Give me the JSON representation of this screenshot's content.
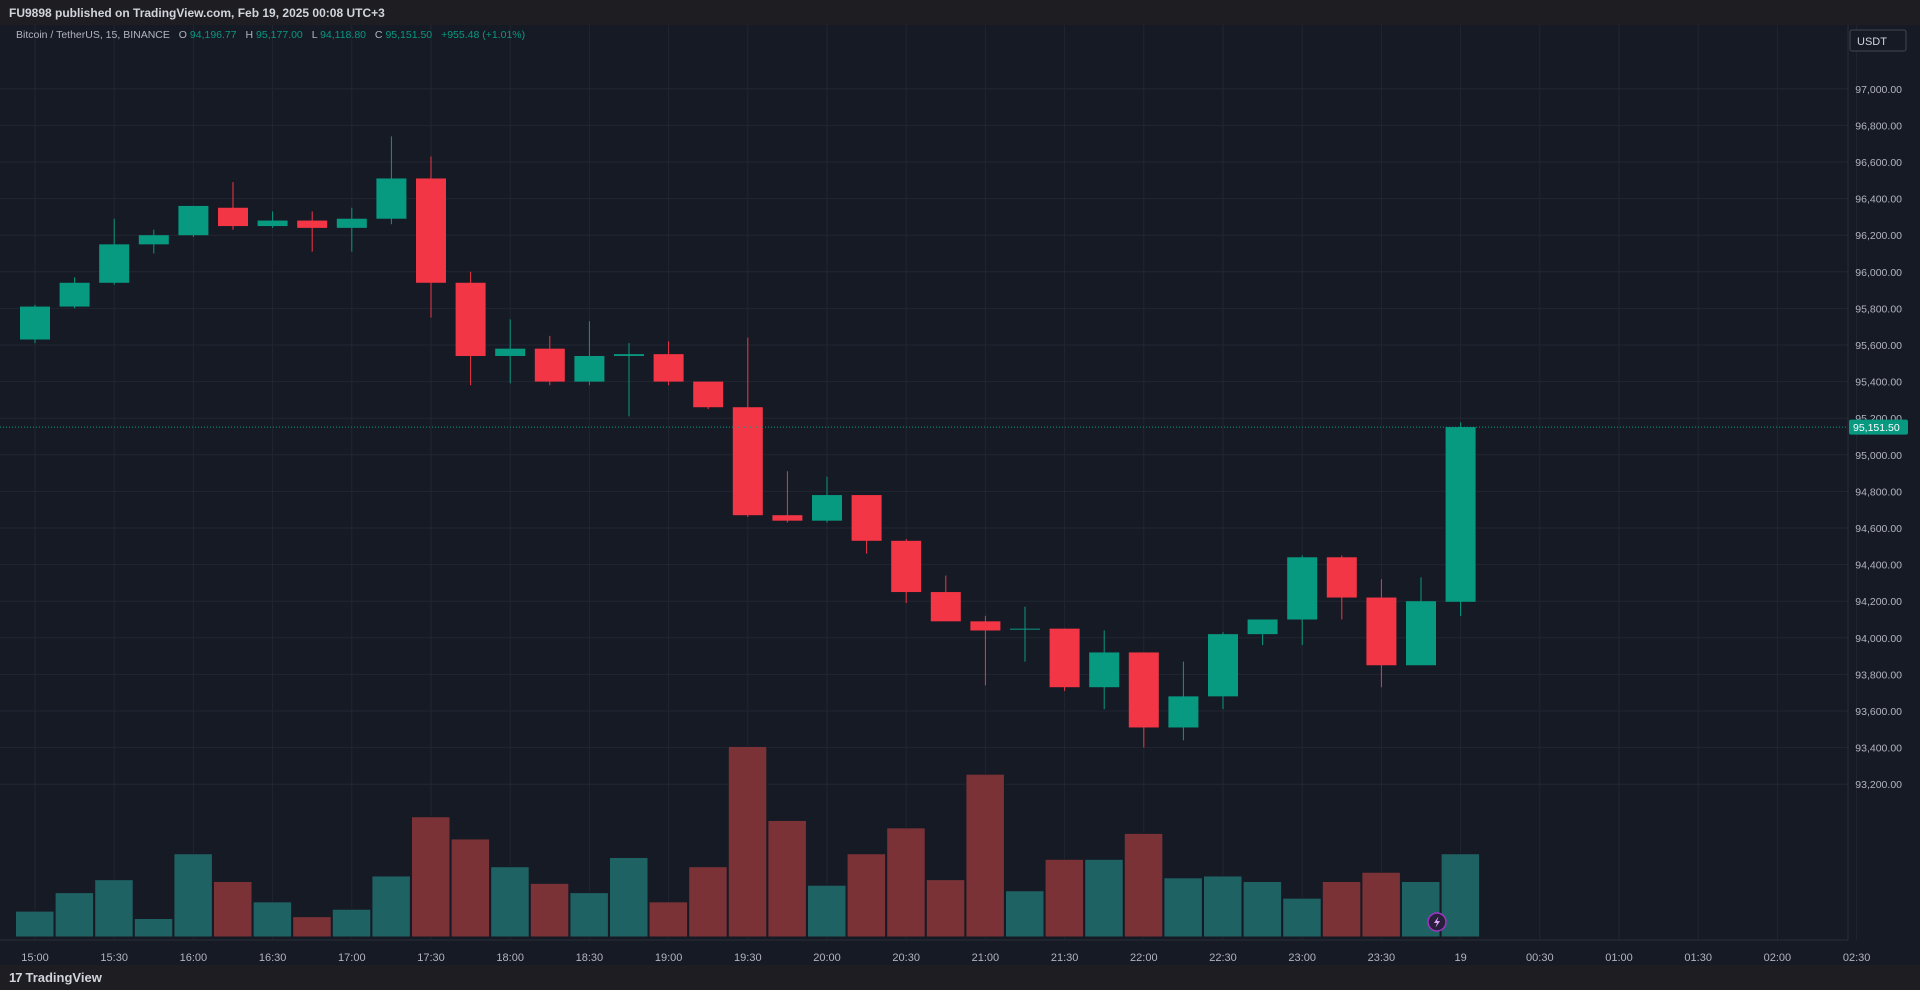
{
  "header": {
    "published": "FU9898 published on TradingView.com, Feb 19, 2025 00:08 UTC+3"
  },
  "footer": {
    "logo_mark": "17",
    "logo_text": "TradingView"
  },
  "colors": {
    "up": "#089981",
    "down": "#f23645",
    "vol_up": "#1f6263",
    "vol_down": "#7a3236",
    "background": "#161a25",
    "grid": "#222632",
    "text": "#b2b5be"
  },
  "icons": {
    "alert": "lightning-icon"
  },
  "chart_data": {
    "type": "candlestick",
    "symbol": "Bitcoin / TetherUS, 15, BINANCE",
    "ohlc_summary": {
      "o_label": "O",
      "o": "94,196.77",
      "h_label": "H",
      "h": "95,177.00",
      "l_label": "L",
      "l": "94,118.80",
      "c_label": "C",
      "c": "95,151.50",
      "change": "+955.48 (+1.01%)"
    },
    "currency": "USDT",
    "last_price": 95151.5,
    "last_price_label": "95,151.50",
    "ylim": [
      93100,
      97100
    ],
    "y_ticks": [
      {
        "value": 97000,
        "label": "97,000.00"
      },
      {
        "value": 96800,
        "label": "96,800.00"
      },
      {
        "value": 96600,
        "label": "96,600.00"
      },
      {
        "value": 96400,
        "label": "96,400.00"
      },
      {
        "value": 96200,
        "label": "96,200.00"
      },
      {
        "value": 96000,
        "label": "96,000.00"
      },
      {
        "value": 95800,
        "label": "95,800.00"
      },
      {
        "value": 95600,
        "label": "95,600.00"
      },
      {
        "value": 95400,
        "label": "95,400.00"
      },
      {
        "value": 95200,
        "label": "95,200.00"
      },
      {
        "value": 95000,
        "label": "95,000.00"
      },
      {
        "value": 94800,
        "label": "94,800.00"
      },
      {
        "value": 94600,
        "label": "94,600.00"
      },
      {
        "value": 94400,
        "label": "94,400.00"
      },
      {
        "value": 94200,
        "label": "94,200.00"
      },
      {
        "value": 94000,
        "label": "94,000.00"
      },
      {
        "value": 93800,
        "label": "93,800.00"
      },
      {
        "value": 93600,
        "label": "93,600.00"
      },
      {
        "value": 93400,
        "label": "93,400.00"
      },
      {
        "value": 93200,
        "label": "93,200.00"
      }
    ],
    "x_ticks": [
      "15:00",
      "15:30",
      "16:00",
      "16:30",
      "17:00",
      "17:30",
      "18:00",
      "18:30",
      "19:00",
      "19:30",
      "20:00",
      "20:30",
      "21:00",
      "21:30",
      "22:00",
      "22:30",
      "23:00",
      "23:30",
      "19",
      "00:30",
      "01:00",
      "01:30",
      "02:00",
      "02:30"
    ],
    "candles": [
      {
        "o": 95630,
        "h": 95820,
        "l": 95610,
        "c": 95810,
        "v": 14
      },
      {
        "o": 95810,
        "h": 95970,
        "l": 95800,
        "c": 95940,
        "v": 24
      },
      {
        "o": 95940,
        "h": 96290,
        "l": 95930,
        "c": 96150,
        "v": 31
      },
      {
        "o": 96150,
        "h": 96230,
        "l": 96100,
        "c": 96200,
        "v": 10
      },
      {
        "o": 96200,
        "h": 96360,
        "l": 96190,
        "c": 96360,
        "v": 45
      },
      {
        "o": 96350,
        "h": 96490,
        "l": 96230,
        "c": 96250,
        "v": 30
      },
      {
        "o": 96250,
        "h": 96330,
        "l": 96240,
        "c": 96280,
        "v": 19
      },
      {
        "o": 96280,
        "h": 96330,
        "l": 96110,
        "c": 96240,
        "v": 11
      },
      {
        "o": 96240,
        "h": 96350,
        "l": 96110,
        "c": 96290,
        "v": 15
      },
      {
        "o": 96290,
        "h": 96740,
        "l": 96260,
        "c": 96510,
        "v": 33
      },
      {
        "o": 96510,
        "h": 96630,
        "l": 95750,
        "c": 95940,
        "v": 65
      },
      {
        "o": 95940,
        "h": 96000,
        "l": 95380,
        "c": 95540,
        "v": 53
      },
      {
        "o": 95540,
        "h": 95740,
        "l": 95390,
        "c": 95580,
        "v": 38
      },
      {
        "o": 95580,
        "h": 95650,
        "l": 95380,
        "c": 95400,
        "v": 29
      },
      {
        "o": 95400,
        "h": 95730,
        "l": 95380,
        "c": 95540,
        "v": 24
      },
      {
        "o": 95540,
        "h": 95610,
        "l": 95210,
        "c": 95550,
        "v": 43
      },
      {
        "o": 95550,
        "h": 95620,
        "l": 95380,
        "c": 95400,
        "v": 19
      },
      {
        "o": 95400,
        "h": 95400,
        "l": 95250,
        "c": 95260,
        "v": 38
      },
      {
        "o": 95260,
        "h": 95640,
        "l": 94660,
        "c": 94670,
        "v": 103
      },
      {
        "o": 94670,
        "h": 94910,
        "l": 94630,
        "c": 94640,
        "v": 63
      },
      {
        "o": 94640,
        "h": 94880,
        "l": 94630,
        "c": 94780,
        "v": 28
      },
      {
        "o": 94780,
        "h": 94780,
        "l": 94460,
        "c": 94530,
        "v": 45
      },
      {
        "o": 94530,
        "h": 94540,
        "l": 94190,
        "c": 94250,
        "v": 59
      },
      {
        "o": 94250,
        "h": 94340,
        "l": 94100,
        "c": 94090,
        "v": 31
      },
      {
        "o": 94090,
        "h": 94120,
        "l": 93740,
        "c": 94040,
        "v": 88
      },
      {
        "o": 94050,
        "h": 94170,
        "l": 93870,
        "c": 94050,
        "v": 25
      },
      {
        "o": 94050,
        "h": 94050,
        "l": 93710,
        "c": 93730,
        "v": 42
      },
      {
        "o": 93730,
        "h": 94040,
        "l": 93610,
        "c": 93920,
        "v": 42
      },
      {
        "o": 93920,
        "h": 93920,
        "l": 93400,
        "c": 93510,
        "v": 56
      },
      {
        "o": 93510,
        "h": 93870,
        "l": 93440,
        "c": 93680,
        "v": 32
      },
      {
        "o": 93680,
        "h": 94030,
        "l": 93610,
        "c": 94020,
        "v": 33
      },
      {
        "o": 94020,
        "h": 94100,
        "l": 93960,
        "c": 94100,
        "v": 30
      },
      {
        "o": 94100,
        "h": 94450,
        "l": 93960,
        "c": 94440,
        "v": 21
      },
      {
        "o": 94440,
        "h": 94450,
        "l": 94100,
        "c": 94220,
        "v": 30
      },
      {
        "o": 94220,
        "h": 94320,
        "l": 93730,
        "c": 93850,
        "v": 35
      },
      {
        "o": 93850,
        "h": 94330,
        "l": 93850,
        "c": 94200,
        "v": 30
      },
      {
        "o": 94196.77,
        "h": 95177,
        "l": 94118.8,
        "c": 95151.5,
        "v": 45
      }
    ]
  }
}
